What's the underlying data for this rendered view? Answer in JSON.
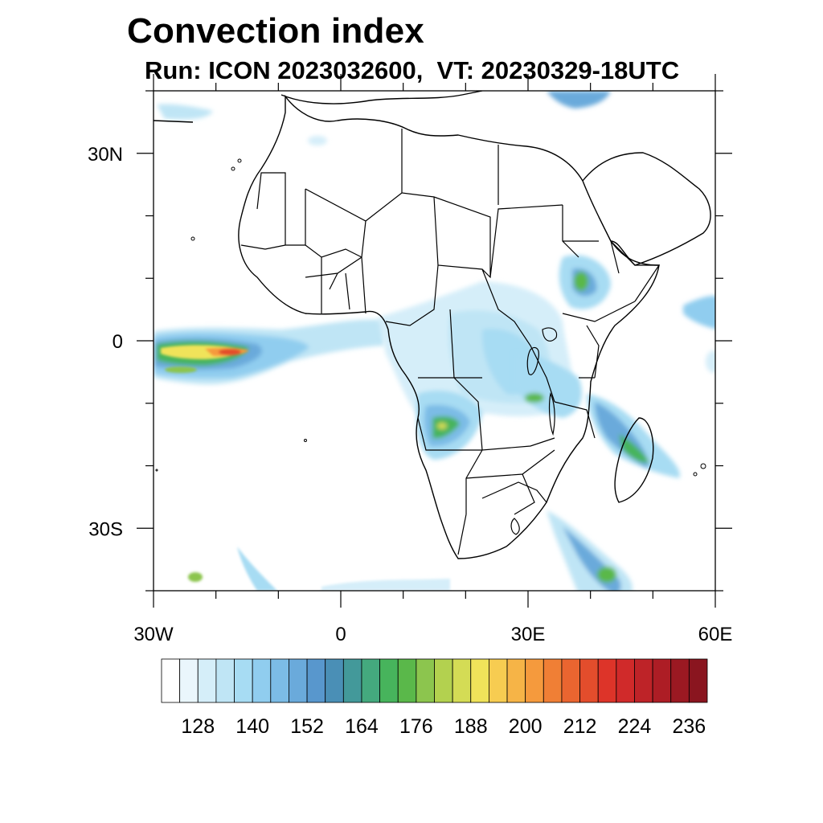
{
  "title": "Convection index",
  "subtitle": "Run: ICON 2023032600,  VT: 20230329-18UTC",
  "axes": {
    "lat_labels": [
      {
        "lat": 30,
        "text": "30N"
      },
      {
        "lat": 0,
        "text": "0"
      },
      {
        "lat": -30,
        "text": "30S"
      }
    ],
    "lon_labels": [
      {
        "lon": -30,
        "text": "30W"
      },
      {
        "lon": 0,
        "text": "0"
      },
      {
        "lon": 30,
        "text": "30E"
      },
      {
        "lon": 60,
        "text": "60E"
      }
    ],
    "lon_range": [
      -30,
      60
    ],
    "lat_range": [
      -40,
      40
    ]
  },
  "colorbar": {
    "colors": [
      "#ffffff",
      "#eaf6fc",
      "#d5eef9",
      "#bfe5f5",
      "#a7dcf3",
      "#90cdef",
      "#7cbce6",
      "#6aaadb",
      "#5897cd",
      "#4a8fb6",
      "#43999a",
      "#44a97e",
      "#47b45c",
      "#5ab84a",
      "#8cc54e",
      "#b3d14f",
      "#d4dc55",
      "#f0e35a",
      "#f7cc51",
      "#f6b447",
      "#f59a3d",
      "#f07f35",
      "#ea6530",
      "#e34d2c",
      "#dd3429",
      "#d02a2a",
      "#be2328",
      "#ad1d25",
      "#9b1922",
      "#8a151f"
    ],
    "labels": [
      "128",
      "140",
      "152",
      "164",
      "176",
      "188",
      "200",
      "212",
      "224",
      "236"
    ]
  }
}
